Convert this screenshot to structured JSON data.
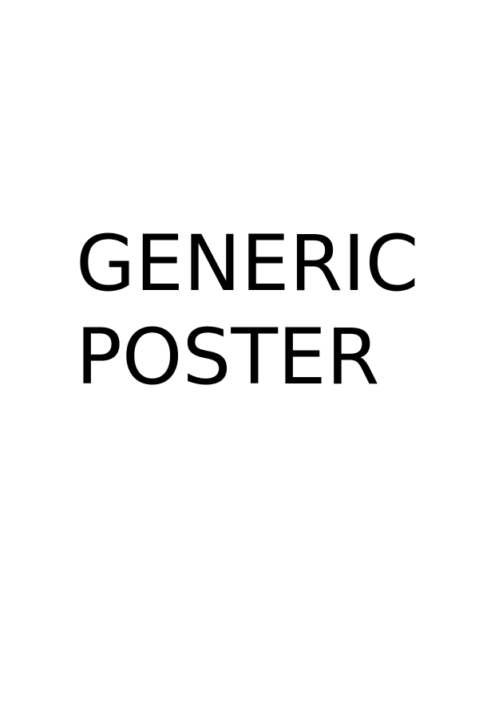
{
  "poster": {
    "title_lines": [
      "GENERIC",
      "POSTER"
    ],
    "text_color": "#000000",
    "background_color": "#ffffff"
  }
}
